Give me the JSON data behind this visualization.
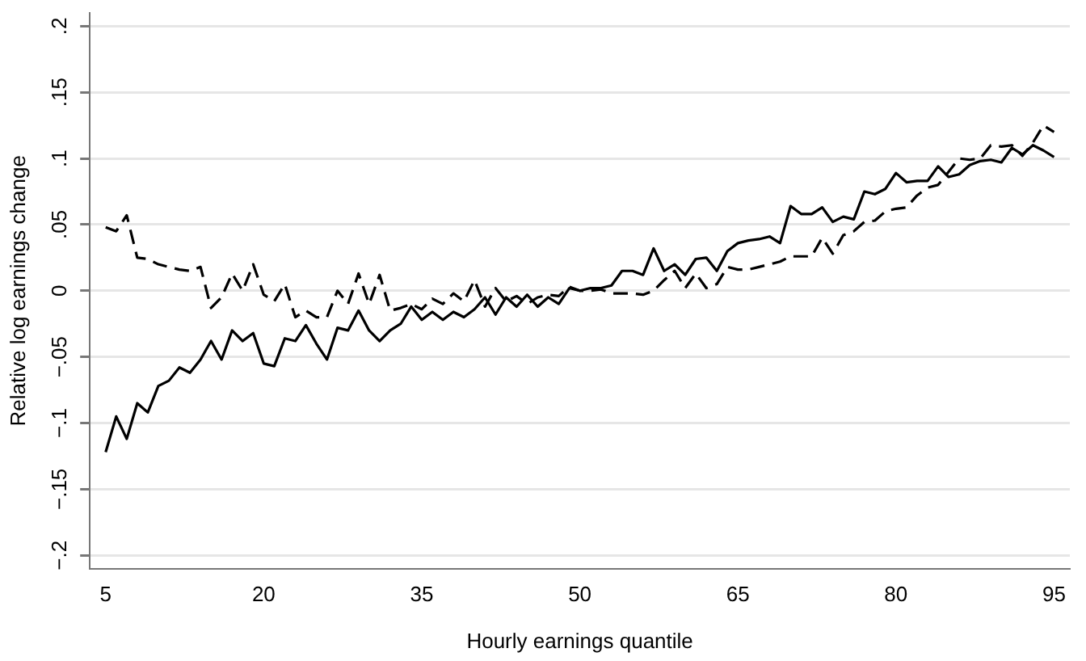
{
  "chart_data": {
    "type": "line",
    "xlabel": "Hourly earnings quantile",
    "ylabel": "Relative log earnings change",
    "x": [
      5,
      6,
      7,
      8,
      9,
      10,
      11,
      12,
      13,
      14,
      15,
      16,
      17,
      18,
      19,
      20,
      21,
      22,
      23,
      24,
      25,
      26,
      27,
      28,
      29,
      30,
      31,
      32,
      33,
      34,
      35,
      36,
      37,
      38,
      39,
      40,
      41,
      42,
      43,
      44,
      45,
      46,
      47,
      48,
      49,
      50,
      51,
      52,
      53,
      54,
      55,
      56,
      57,
      58,
      59,
      60,
      61,
      62,
      63,
      64,
      65,
      66,
      67,
      68,
      69,
      70,
      71,
      72,
      73,
      74,
      75,
      76,
      77,
      78,
      79,
      80,
      81,
      82,
      83,
      84,
      85,
      86,
      87,
      88,
      89,
      90,
      91,
      92,
      93,
      94,
      95
    ],
    "series": [
      {
        "color": "#000000",
        "line_style": "solid",
        "values": [
          -0.122,
          -0.095,
          -0.112,
          -0.085,
          -0.092,
          -0.072,
          -0.068,
          -0.058,
          -0.062,
          -0.052,
          -0.038,
          -0.052,
          -0.03,
          -0.038,
          -0.032,
          -0.055,
          -0.057,
          -0.036,
          -0.038,
          -0.026,
          -0.04,
          -0.052,
          -0.028,
          -0.03,
          -0.015,
          -0.03,
          -0.038,
          -0.03,
          -0.025,
          -0.012,
          -0.022,
          -0.016,
          -0.022,
          -0.016,
          -0.02,
          -0.014,
          -0.005,
          -0.018,
          -0.005,
          -0.012,
          -0.003,
          -0.012,
          -0.005,
          -0.01,
          0.002,
          0,
          0.002,
          0.002,
          0.004,
          0.015,
          0.015,
          0.012,
          0.032,
          0.015,
          0.02,
          0.012,
          0.024,
          0.025,
          0.015,
          0.03,
          0.036,
          0.038,
          0.039,
          0.041,
          0.036,
          0.064,
          0.058,
          0.058,
          0.063,
          0.052,
          0.056,
          0.054,
          0.075,
          0.073,
          0.077,
          0.089,
          0.082,
          0.083,
          0.083,
          0.094,
          0.086,
          0.088,
          0.095,
          0.098,
          0.099,
          0.097,
          0.108,
          0.103,
          0.11,
          0.106,
          0.101
        ]
      },
      {
        "color": "#000000",
        "line_style": "dashed",
        "values": [
          0.048,
          0.045,
          0.057,
          0.025,
          0.024,
          0.02,
          0.018,
          0.016,
          0.015,
          0.018,
          -0.013,
          -0.005,
          0.013,
          0,
          0.02,
          -0.003,
          -0.008,
          0.005,
          -0.02,
          -0.015,
          -0.02,
          -0.02,
          0,
          -0.01,
          0.013,
          -0.01,
          0.012,
          -0.015,
          -0.013,
          -0.01,
          -0.014,
          -0.006,
          -0.01,
          -0.002,
          -0.008,
          0.008,
          -0.012,
          0.002,
          -0.008,
          -0.004,
          -0.01,
          -0.005,
          -0.003,
          -0.004,
          0.003,
          0,
          0,
          0.001,
          -0.002,
          -0.002,
          -0.002,
          -0.003,
          0,
          0.008,
          0.015,
          0.002,
          0.013,
          0.002,
          0.005,
          0.018,
          0.016,
          0.016,
          0.018,
          0.02,
          0.022,
          0.026,
          0.026,
          0.026,
          0.04,
          0.028,
          0.042,
          0.045,
          0.052,
          0.053,
          0.06,
          0.062,
          0.063,
          0.072,
          0.078,
          0.08,
          0.09,
          0.1,
          0.099,
          0.1,
          0.11,
          0.109,
          0.11,
          0.102,
          0.112,
          0.125,
          0.12
        ]
      }
    ],
    "xlim": [
      3.5,
      96.5
    ],
    "xticks": [
      5,
      20,
      35,
      50,
      65,
      80,
      95
    ],
    "ylim": [
      -0.21,
      0.21
    ],
    "yticks": [
      {
        "value": -0.2,
        "label": "−.2"
      },
      {
        "value": -0.15,
        "label": "−.15"
      },
      {
        "value": -0.1,
        "label": "−.1"
      },
      {
        "value": -0.05,
        "label": "−.05"
      },
      {
        "value": 0,
        "label": "0"
      },
      {
        "value": 0.05,
        "label": ".05"
      },
      {
        "value": 0.1,
        "label": ".1"
      },
      {
        "value": 0.15,
        "label": ".15"
      },
      {
        "value": 0.2,
        "label": ".2"
      }
    ],
    "grid": "y",
    "marker": "none"
  }
}
